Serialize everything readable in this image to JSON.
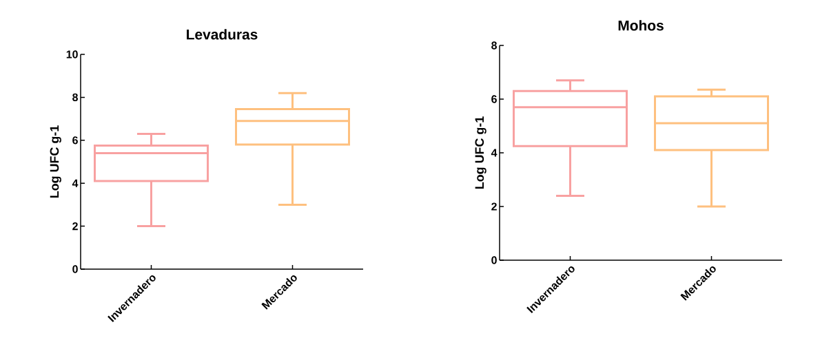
{
  "chart_data": [
    {
      "type": "box",
      "title": "Levaduras",
      "ylabel": "Log UFC g-1",
      "categories": [
        "Invernadero",
        "Mercado"
      ],
      "colors": [
        "#f8a1a1",
        "#fec07f"
      ],
      "ylim": [
        0,
        10
      ],
      "yticks": [
        0,
        2,
        4,
        6,
        8,
        10
      ],
      "grid": false,
      "boxes": [
        {
          "low": 2.0,
          "q1": 4.1,
          "median": 5.4,
          "q3": 5.75,
          "high": 6.3
        },
        {
          "low": 3.0,
          "q1": 5.8,
          "median": 6.9,
          "q3": 7.45,
          "high": 8.2
        }
      ]
    },
    {
      "type": "box",
      "title": "Mohos",
      "ylabel": "Log UFC g-1",
      "categories": [
        "Invernadero",
        "Mercado"
      ],
      "colors": [
        "#f8a1a1",
        "#fec07f"
      ],
      "ylim": [
        0,
        8
      ],
      "yticks": [
        0,
        2,
        4,
        6,
        8
      ],
      "grid": false,
      "boxes": [
        {
          "low": 2.4,
          "q1": 4.25,
          "median": 5.7,
          "q3": 6.3,
          "high": 6.7
        },
        {
          "low": 2.0,
          "q1": 4.1,
          "median": 5.1,
          "q3": 6.1,
          "high": 6.35
        }
      ]
    }
  ]
}
